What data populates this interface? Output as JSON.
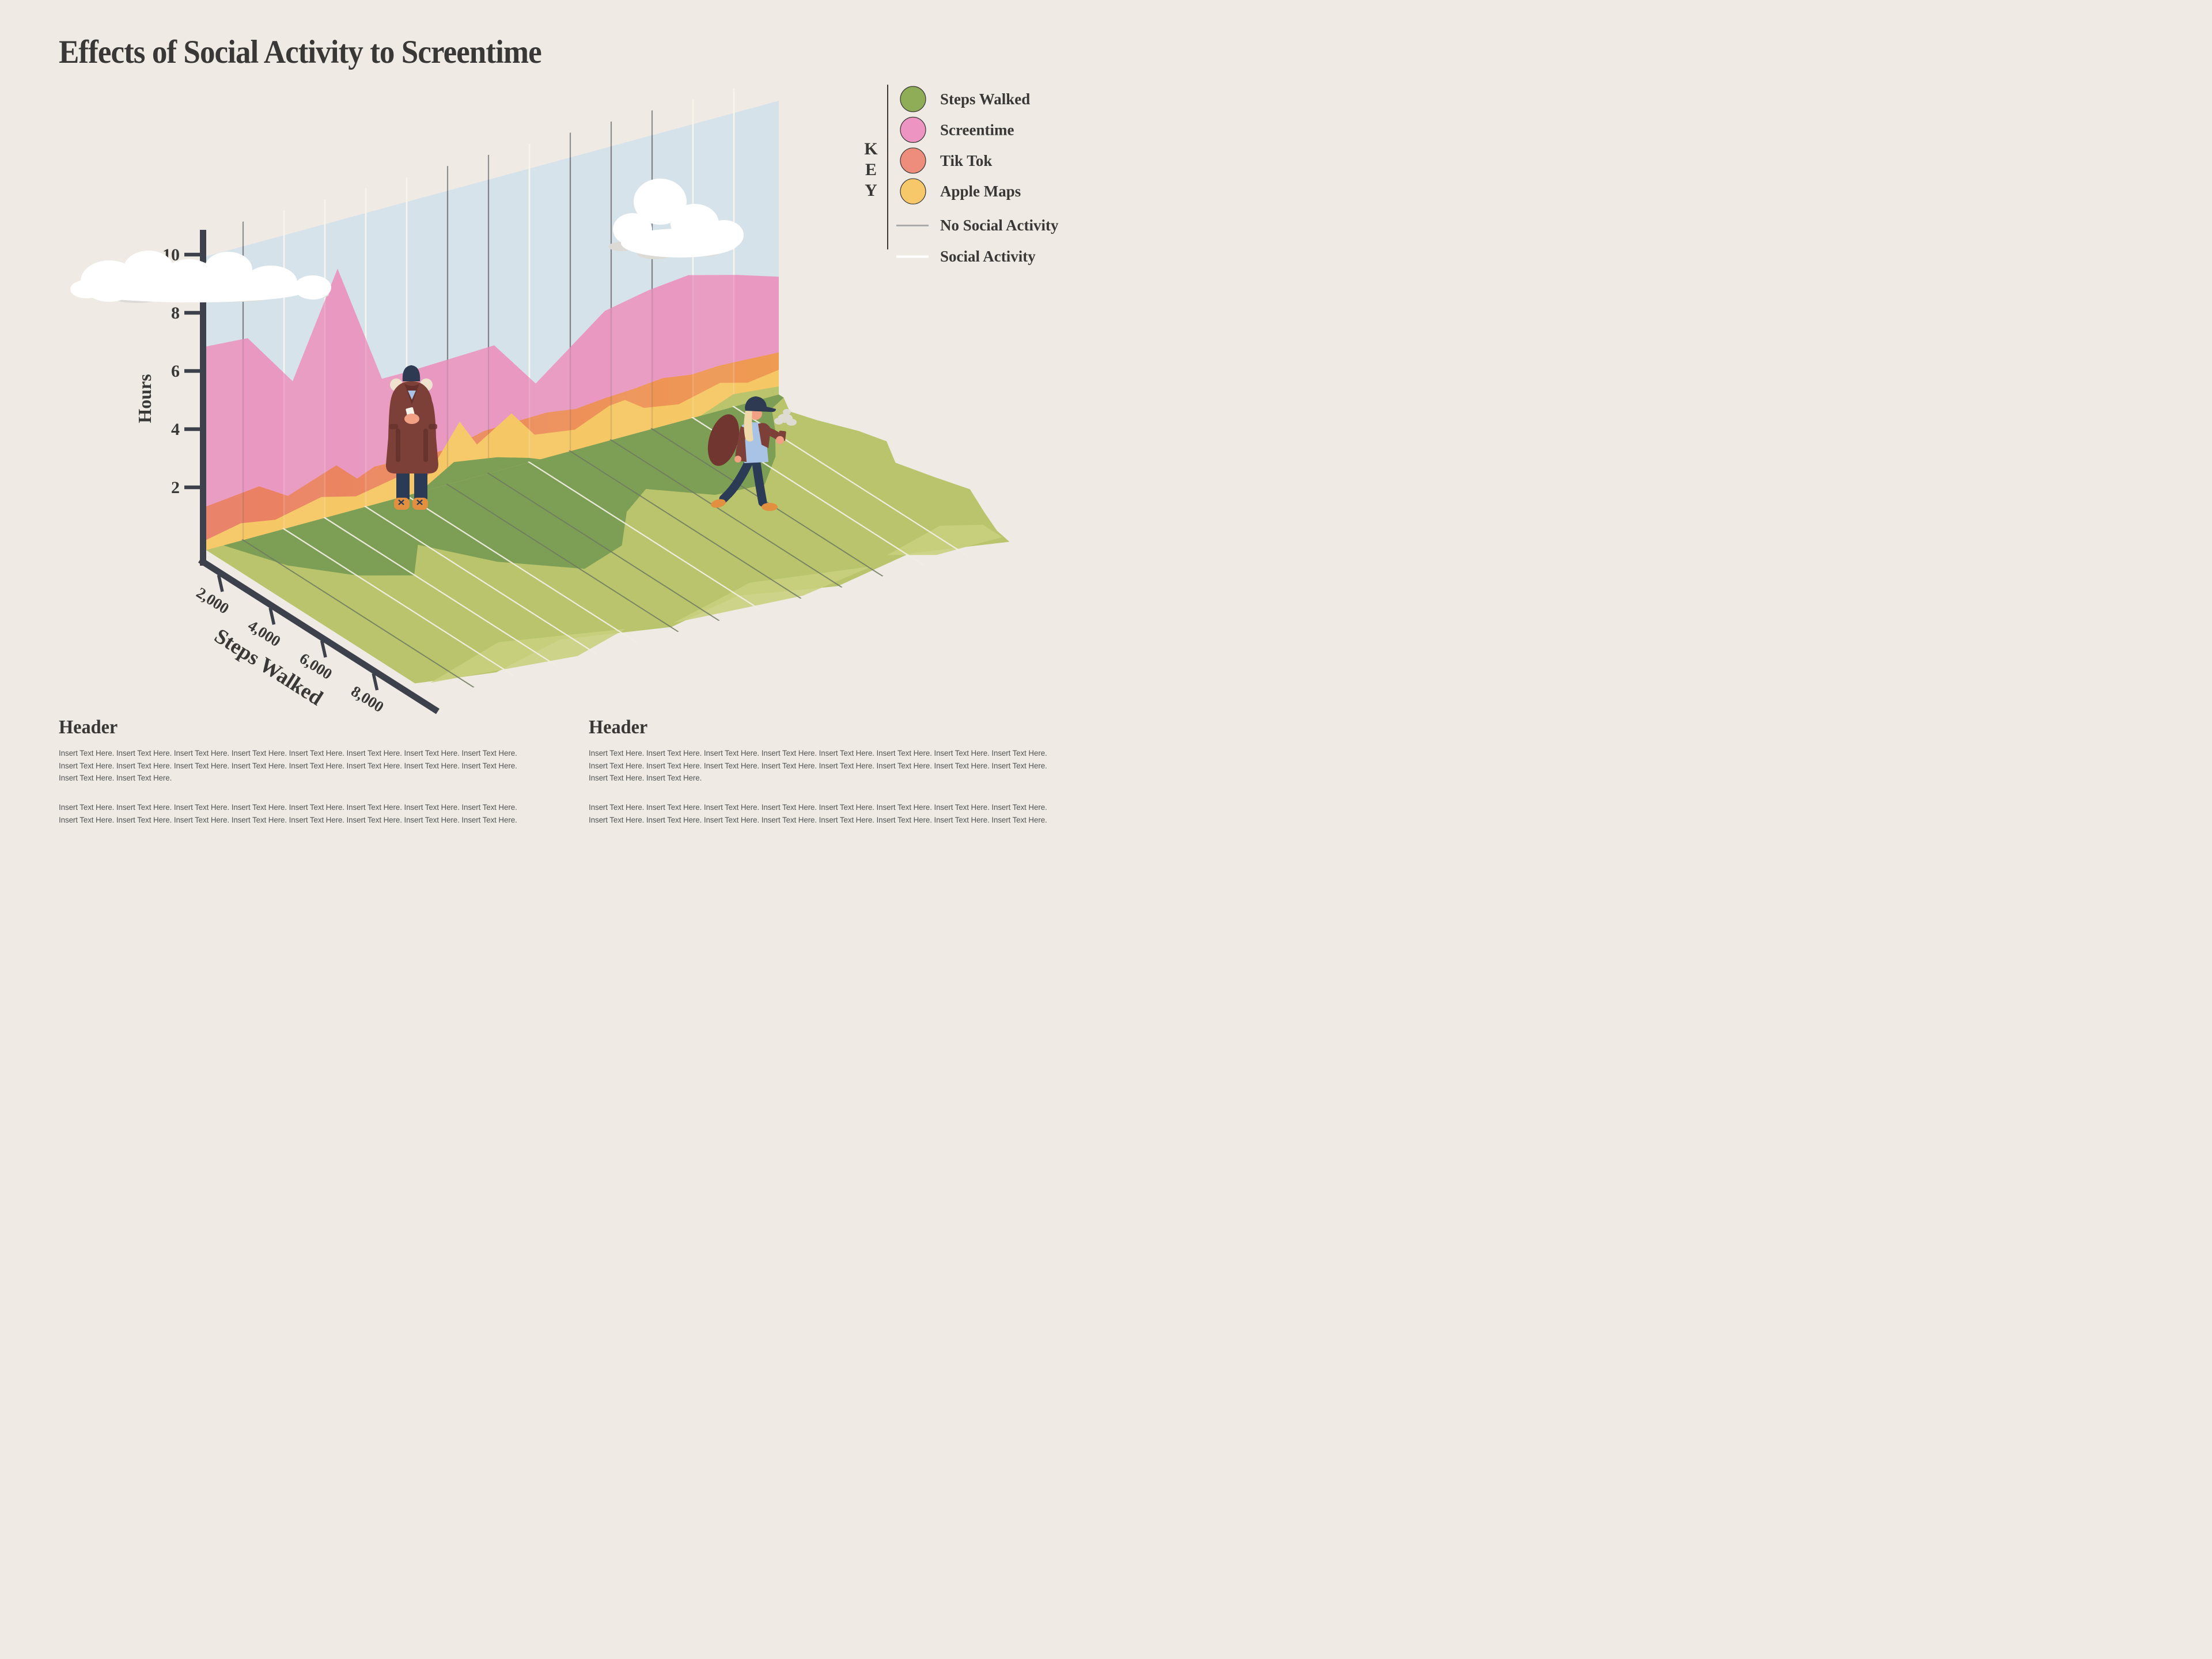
{
  "title": "Effects of Social Activity to Screentime",
  "key": {
    "letters": [
      "K",
      "E",
      "Y"
    ],
    "items": [
      {
        "label": "Steps Walked",
        "color": "#8FAC56"
      },
      {
        "label": "Screentime",
        "color": "#EE94C2"
      },
      {
        "label": "Tik Tok",
        "color": "#EE8D7B"
      },
      {
        "label": "Apple Maps",
        "color": "#F7C869"
      }
    ],
    "line_items": [
      {
        "label": "No Social Activity",
        "color": "#ABABAB"
      },
      {
        "label": "Social Activity",
        "color": "#FFFFFF"
      }
    ]
  },
  "axes": {
    "y_label": "Hours",
    "y_ticks": [
      "2",
      "4",
      "6",
      "8",
      "10"
    ],
    "x_label": "Steps Walked",
    "x_ticks": [
      "2,000",
      "4,000",
      "6,000",
      "8,000"
    ]
  },
  "chart_data": {
    "type": "area",
    "style": "isometric 3D wall-and-ground infographic area chart",
    "y_axis": {
      "label": "Hours",
      "range": [
        0,
        10
      ],
      "ticks": [
        2,
        4,
        6,
        8,
        10
      ]
    },
    "ground_axis": {
      "label": "Steps Walked",
      "ticks": [
        2000,
        4000,
        6000,
        8000
      ],
      "range": [
        0,
        10000
      ]
    },
    "days": [
      {
        "social": false,
        "screentime": 6.9,
        "tiktok": 1.6,
        "applemaps": 0.6
      },
      {
        "social": true,
        "screentime": 5.4,
        "tiktok": 1.2,
        "applemaps": 0.45
      },
      {
        "social": true,
        "screentime": 7.5,
        "tiktok": 1.6,
        "applemaps": 0.7
      },
      {
        "social": true,
        "screentime": 5.8,
        "tiktok": 1.2,
        "applemaps": 0.5
      },
      {
        "social": true,
        "screentime": 4.25,
        "tiktok": 1.25,
        "applemaps": 0.8
      },
      {
        "social": false,
        "screentime": 4.3,
        "tiktok": 1.2,
        "applemaps": 0.6
      },
      {
        "social": false,
        "screentime": 4.35,
        "tiktok": 1.45,
        "applemaps": 1.9
      },
      {
        "social": true,
        "screentime": 2.8,
        "tiktok": 1.5,
        "applemaps": 0.9
      },
      {
        "social": false,
        "screentime": 3.6,
        "tiktok": 1.45,
        "applemaps": 0.75
      },
      {
        "social": false,
        "screentime": 4.55,
        "tiktok": 1.5,
        "applemaps": 1.2
      },
      {
        "social": false,
        "screentime": 4.85,
        "tiktok": 1.6,
        "applemaps": 0.75
      },
      {
        "social": true,
        "screentime": 4.9,
        "tiktok": 1.5,
        "applemaps": 0.7
      },
      {
        "social": true,
        "screentime": 4.5,
        "tiktok": 1.5,
        "applemaps": 0.8
      }
    ],
    "series": [
      {
        "id": "screentime",
        "name": "Screentime",
        "color": "#E999C1",
        "profile": [
          [
            0,
            7.0
          ],
          [
            72,
            6.9
          ],
          [
            150,
            5.0
          ],
          [
            228,
            8.45
          ],
          [
            305,
            4.25
          ],
          [
            352,
            4.25
          ],
          [
            500,
            4.35
          ],
          [
            572,
            2.65
          ],
          [
            692,
            4.5
          ],
          [
            767,
            4.8
          ],
          [
            837,
            4.95
          ],
          [
            922,
            4.5
          ],
          [
            994,
            4.05
          ]
        ]
      },
      {
        "id": "tiktok",
        "name": "Tik Tok",
        "color": [
          "#E97E65",
          "#EF9B52"
        ],
        "profile": [
          [
            0,
            1.5
          ],
          [
            92,
            1.7
          ],
          [
            142,
            1.1
          ],
          [
            226,
            1.7
          ],
          [
            262,
            1.05
          ],
          [
            292,
            1.3
          ],
          [
            422,
            1.2
          ],
          [
            482,
            1.5
          ],
          [
            592,
            1.55
          ],
          [
            642,
            1.4
          ],
          [
            692,
            1.5
          ],
          [
            742,
            1.55
          ],
          [
            792,
            1.65
          ],
          [
            842,
            1.5
          ],
          [
            892,
            1.55
          ],
          [
            942,
            1.5
          ],
          [
            994,
            1.45
          ]
        ]
      },
      {
        "id": "applemaps",
        "name": "Apple Maps",
        "color": "#F6C765",
        "profile": [
          [
            0,
            0.35
          ],
          [
            60,
            0.6
          ],
          [
            120,
            0.4
          ],
          [
            200,
            0.75
          ],
          [
            260,
            0.45
          ],
          [
            352,
            0.8
          ],
          [
            385,
            0.5
          ],
          [
            440,
            2.05
          ],
          [
            470,
            1.1
          ],
          [
            530,
            1.85
          ],
          [
            570,
            0.9
          ],
          [
            640,
            0.7
          ],
          [
            700,
            1.2
          ],
          [
            727,
            1.25
          ],
          [
            760,
            0.8
          ],
          [
            820,
            0.6
          ],
          [
            892,
            0.95
          ],
          [
            940,
            0.7
          ],
          [
            994,
            0.85
          ]
        ]
      }
    ],
    "legend_position": "top-right"
  },
  "sections": [
    {
      "header": "Header",
      "p1": "Insert Text Here. Insert Text Here. Insert Text Here. Insert Text Here. Insert Text Here. Insert Text Here. Insert Text Here. Insert Text Here. Insert Text Here. Insert Text Here. Insert Text Here. Insert Text Here. Insert Text Here. Insert Text Here. Insert Text Here. Insert Text Here. Insert Text Here. Insert Text Here.",
      "p2": "Insert Text Here. Insert Text Here. Insert Text Here. Insert Text Here. Insert Text Here. Insert Text Here. Insert Text Here. Insert Text Here. Insert Text Here. Insert Text Here. Insert Text Here. Insert Text Here. Insert Text Here. Insert Text Here. Insert Text Here. Insert Text Here. Insert Text Here. Insert Text Here."
    },
    {
      "header": "Header",
      "p1": "Insert Text Here. Insert Text Here. Insert Text Here. Insert Text Here. Insert Text Here. Insert Text Here. Insert Text Here. Insert Text Here. Insert Text Here. Insert Text Here. Insert Text Here. Insert Text Here. Insert Text Here. Insert Text Here. Insert Text Here. Insert Text Here. Insert Text Here. Insert Text Here.",
      "p2": "Insert Text Here. Insert Text Here. Insert Text Here. Insert Text Here. Insert Text Here. Insert Text Here. Insert Text Here. Insert Text Here. Insert Text Here. Insert Text Here. Insert Text Here. Insert Text Here. Insert Text Here. Insert Text Here. Insert Text Here. Insert Text Here. Insert Text Here. Insert Text Here."
    }
  ],
  "colors": {
    "background": "#EFEBE4",
    "ink": "#3A3836",
    "axis": "#3C414C",
    "sky": "#D6E2EA",
    "no_social_line": "#75777B",
    "social_line": "#F8F5EC",
    "no_social_ground": "#6F7A60",
    "social_ground": "#F1EFE2",
    "green_dark": "#7C9F55",
    "green_light": "#B9C46C",
    "green_highlight": "#C9D07E"
  }
}
